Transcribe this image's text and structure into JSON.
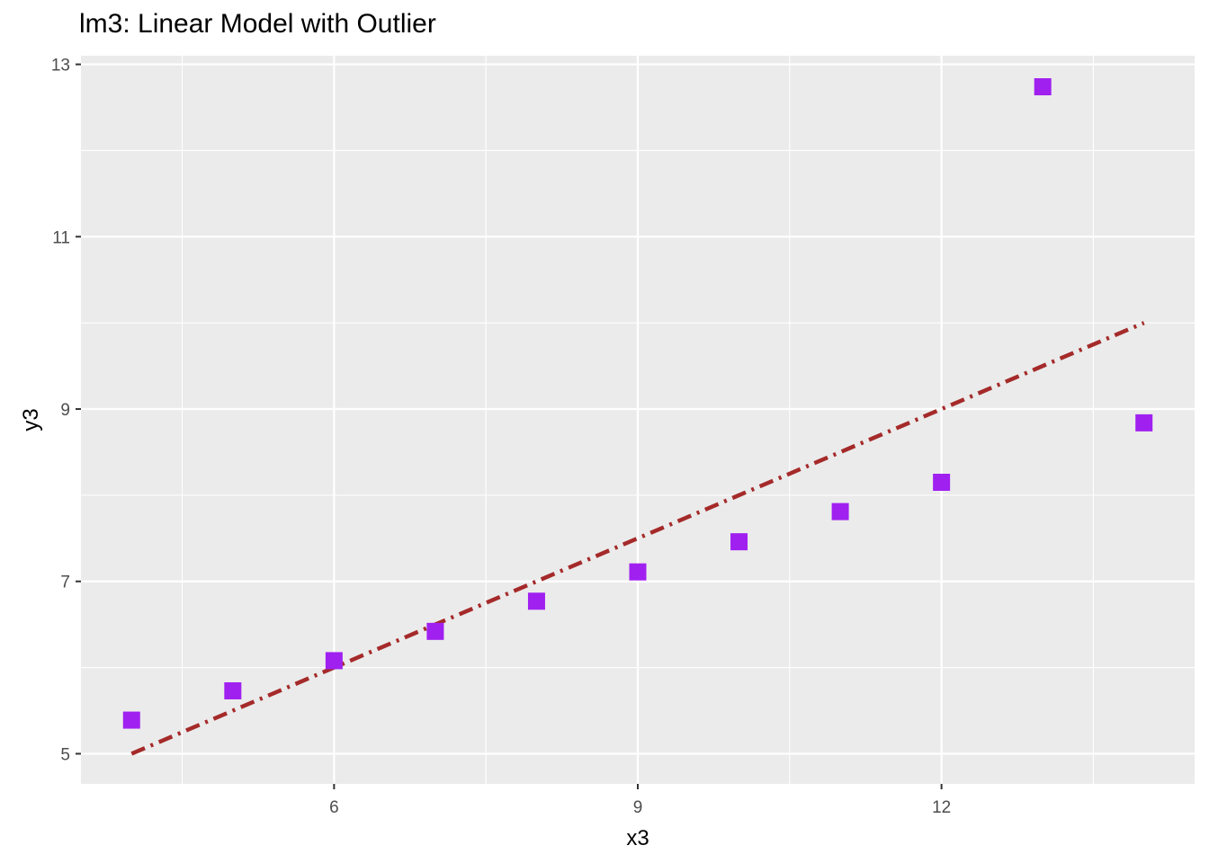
{
  "chart_data": {
    "type": "scatter",
    "title": "lm3: Linear Model with Outlier",
    "xlabel": "x3",
    "ylabel": "y3",
    "xlim": [
      3.5,
      14.5
    ],
    "ylim": [
      4.65,
      13.1
    ],
    "x_ticks": [
      6,
      9,
      12
    ],
    "y_ticks": [
      5,
      7,
      9,
      11,
      13
    ],
    "grid": true,
    "legend": "none",
    "points": {
      "x": [
        4,
        5,
        6,
        7,
        8,
        9,
        10,
        11,
        12,
        13,
        14
      ],
      "y": [
        5.39,
        5.73,
        6.08,
        6.42,
        6.77,
        7.11,
        7.46,
        7.81,
        8.15,
        12.74,
        8.84
      ],
      "color": "#a020f0",
      "shape": "square"
    },
    "fit_line": {
      "x": [
        4,
        14
      ],
      "y": [
        5.0,
        10.0
      ],
      "color": "#a52a2a",
      "style": "dot-dash"
    },
    "colors": {
      "panel": "#ebebeb",
      "grid": "#ffffff"
    }
  }
}
